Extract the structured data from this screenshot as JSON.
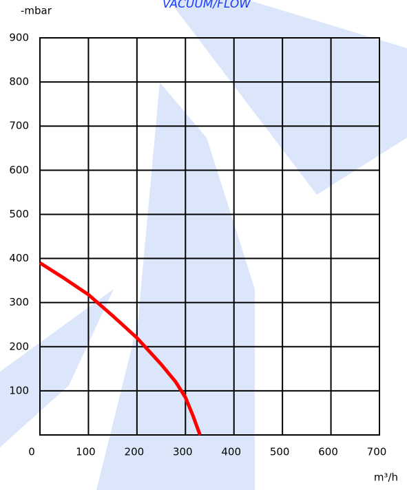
{
  "chart_data": {
    "type": "line",
    "title": "VACUUM/FLOW",
    "y_label": "-mbar",
    "x_label": "m³/h",
    "x": [
      0,
      50,
      100,
      150,
      200,
      250,
      280,
      300,
      315,
      330
    ],
    "series": [
      {
        "name": null,
        "color": "#ff0000",
        "values": [
          390,
          355,
          318,
          270,
          220,
          160,
          120,
          85,
          45,
          0
        ]
      }
    ],
    "xlim": [
      0,
      700
    ],
    "ylim": [
      0,
      900
    ],
    "xticks": [
      0,
      100,
      200,
      300,
      400,
      500,
      600,
      700
    ],
    "yticks": [
      100,
      200,
      300,
      400,
      500,
      600,
      700,
      800,
      900
    ],
    "grid": true
  }
}
